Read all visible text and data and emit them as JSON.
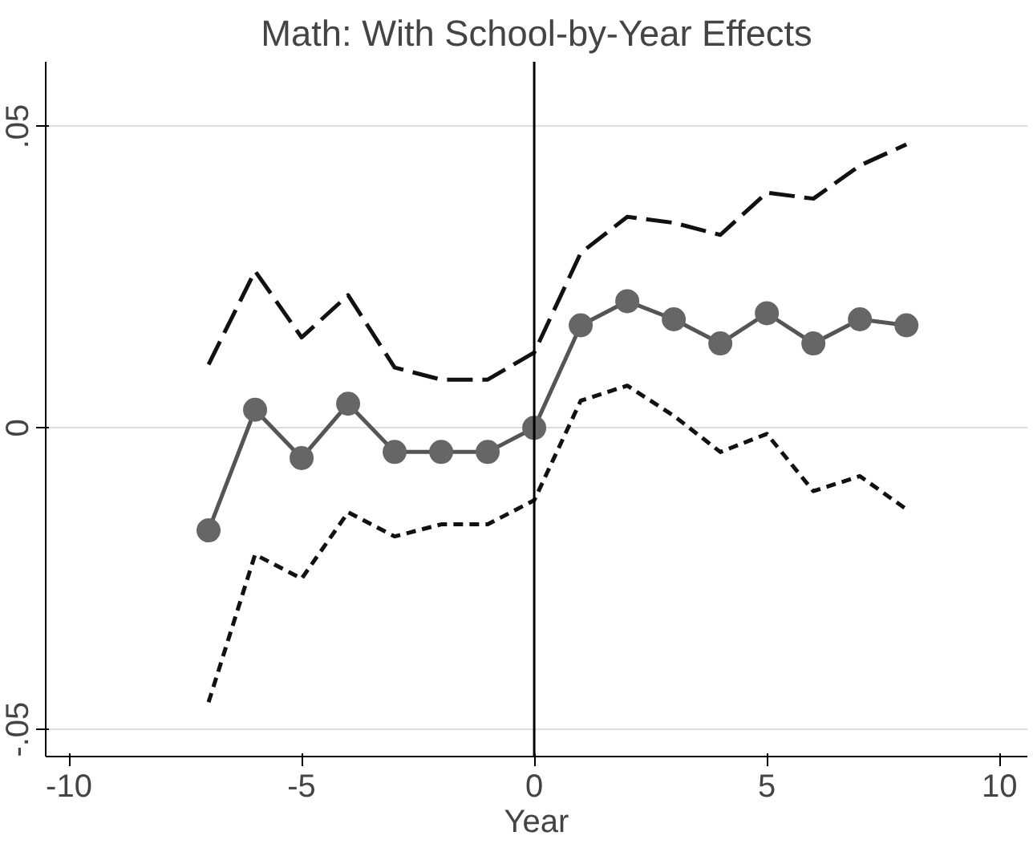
{
  "chart_data": {
    "type": "line",
    "title": "Math: With School-by-Year Effects",
    "xlabel": "Year",
    "x": [
      -7,
      -6,
      -5,
      -4,
      -3,
      -2,
      -1,
      0,
      1,
      2,
      3,
      4,
      5,
      6,
      7,
      8
    ],
    "series": [
      {
        "color": "#555555",
        "marker": "circle",
        "line_style": "solid",
        "values": [
          -0.017,
          0.003,
          -0.005,
          0.004,
          -0.004,
          -0.004,
          -0.004,
          0,
          0.017,
          0.021,
          0.018,
          0.014,
          0.019,
          0.014,
          0.018,
          0.017
        ]
      },
      {
        "color": "#111111",
        "marker": "none",
        "line_style": "dashed",
        "values": [
          0.0105,
          0.026,
          0.015,
          0.022,
          0.01,
          0.008,
          0.008,
          0.0125,
          0.029,
          0.035,
          0.034,
          0.032,
          0.039,
          0.038,
          0.0435,
          0.047
        ]
      },
      {
        "color": "#111111",
        "marker": "none",
        "line_style": "dotted",
        "values": [
          -0.0455,
          -0.021,
          -0.025,
          -0.014,
          -0.018,
          -0.016,
          -0.016,
          -0.012,
          0.0045,
          0.007,
          0.002,
          -0.004,
          -0.001,
          -0.0105,
          -0.008,
          -0.0135
        ]
      }
    ],
    "xlim": [
      -10.5,
      10.6
    ],
    "ylim": [
      -0.0545,
      0.0607
    ],
    "xticks": [
      -10,
      -5,
      0,
      5,
      10
    ],
    "yticks": [
      {
        "value": -0.05,
        "label": "-.05"
      },
      0,
      {
        "value": 0.05,
        "label": ".05"
      }
    ],
    "ref_lines": [
      {
        "axis": "x",
        "value": 0,
        "color": "#000000"
      }
    ],
    "grid": "y"
  }
}
